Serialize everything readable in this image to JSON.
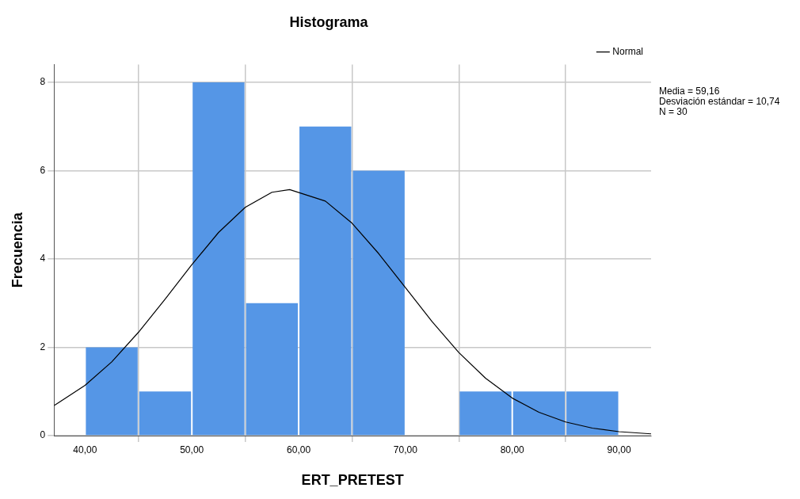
{
  "chart_data": {
    "type": "histogram",
    "title": "Histograma",
    "xlabel": "ERT_PRETEST",
    "ylabel": "Frecuencia",
    "bins": [
      40,
      45,
      50,
      55,
      60,
      65,
      70,
      75,
      80,
      85,
      90
    ],
    "values": [
      2,
      1,
      8,
      3,
      7,
      6,
      0,
      1,
      1,
      1
    ],
    "color": "#5596e6",
    "series": [
      {
        "name": "Normal",
        "type": "line",
        "color": "#000000",
        "x": [
          37.1,
          40,
          42.5,
          45,
          47.5,
          50,
          52.5,
          55,
          57.5,
          59.16,
          62.5,
          65,
          67.5,
          70,
          72.5,
          75,
          77.5,
          80,
          82.5,
          85,
          87.5,
          90,
          93
        ],
        "values": [
          0.68,
          1.14,
          1.67,
          2.34,
          3.09,
          3.87,
          4.6,
          5.17,
          5.51,
          5.57,
          5.31,
          4.81,
          4.12,
          3.35,
          2.58,
          1.88,
          1.3,
          0.85,
          0.53,
          0.31,
          0.17,
          0.09,
          0.04
        ]
      }
    ],
    "xlim": [
      37.1,
      93
    ],
    "xticks": [
      {
        "value": 40,
        "label": "40,00"
      },
      {
        "value": 50,
        "label": "50,00"
      },
      {
        "value": 60,
        "label": "60,00"
      },
      {
        "value": 70,
        "label": "70,00"
      },
      {
        "value": 80,
        "label": "80,00"
      },
      {
        "value": 90,
        "label": "90,00"
      }
    ],
    "ylim": [
      0,
      8.4
    ],
    "yticks": [
      0,
      2,
      4,
      6,
      8
    ],
    "grid": true,
    "legend": "top right",
    "annotations": [
      "Media = 59,16",
      "Desviación estándar = 10,74",
      "N = 30"
    ]
  }
}
